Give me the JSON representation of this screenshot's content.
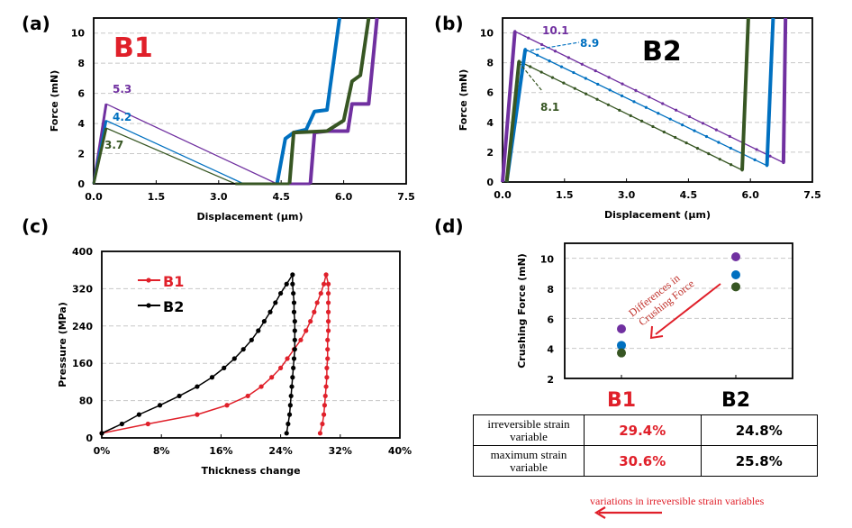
{
  "colors": {
    "purple": "#7030A0",
    "blue": "#0070C0",
    "green": "#375623",
    "red": "#E0202A",
    "black": "#000000"
  },
  "panels": {
    "a": "(a)",
    "b": "(b)",
    "c": "(c)",
    "d": "(d)"
  },
  "chart_data": [
    {
      "id": "a",
      "type": "line",
      "title": "B1",
      "xlabel": "Displacement (μm)",
      "ylabel": "Force (mN)",
      "xlim": [
        0,
        7.5
      ],
      "ylim": [
        0,
        11
      ],
      "xticks": [
        "0.0",
        "1.5",
        "3.0",
        "4.5",
        "6.0",
        "7.5"
      ],
      "yticks": [
        "0",
        "2",
        "4",
        "6",
        "8",
        "10"
      ],
      "grid": true,
      "annotations": [
        {
          "text": "5.3",
          "series": "purple"
        },
        {
          "text": "4.2",
          "series": "blue"
        },
        {
          "text": "3.7",
          "series": "green"
        }
      ],
      "series": [
        {
          "name": "purple",
          "color": "#7030A0",
          "points": [
            [
              0,
              0
            ],
            [
              0.3,
              5.3
            ],
            [
              4.4,
              0
            ],
            [
              5.2,
              0
            ],
            [
              5.3,
              3.4
            ],
            [
              5.6,
              3.5
            ],
            [
              6.1,
              3.5
            ],
            [
              6.2,
              5.3
            ],
            [
              6.6,
              5.3
            ],
            [
              6.8,
              11
            ]
          ]
        },
        {
          "name": "blue",
          "color": "#0070C0",
          "points": [
            [
              0,
              0
            ],
            [
              0.3,
              4.2
            ],
            [
              3.6,
              0
            ],
            [
              4.4,
              0
            ],
            [
              4.6,
              3
            ],
            [
              4.8,
              3.4
            ],
            [
              5.1,
              3.6
            ],
            [
              5.3,
              4.8
            ],
            [
              5.6,
              4.9
            ],
            [
              5.9,
              11
            ]
          ]
        },
        {
          "name": "green",
          "color": "#375623",
          "points": [
            [
              0,
              0
            ],
            [
              0.3,
              3.7
            ],
            [
              3.4,
              0
            ],
            [
              4.7,
              0
            ],
            [
              4.8,
              3.4
            ],
            [
              5.6,
              3.5
            ],
            [
              6.0,
              4.2
            ],
            [
              6.2,
              6.8
            ],
            [
              6.4,
              7.2
            ],
            [
              6.6,
              11
            ]
          ]
        }
      ]
    },
    {
      "id": "b",
      "type": "line",
      "title": "B2",
      "xlabel": "Displacement (μm)",
      "ylabel": "Force (mN)",
      "xlim": [
        0,
        7.5
      ],
      "ylim": [
        0,
        11
      ],
      "xticks": [
        "0.0",
        "1.5",
        "3.0",
        "4.5",
        "6.0",
        "7.5"
      ],
      "yticks": [
        "0",
        "2",
        "4",
        "6",
        "8",
        "10"
      ],
      "grid": true,
      "annotations": [
        {
          "text": "10.1",
          "series": "purple"
        },
        {
          "text": "8.9",
          "series": "blue"
        },
        {
          "text": "8.1",
          "series": "green"
        }
      ],
      "series": [
        {
          "name": "purple",
          "color": "#7030A0",
          "points": [
            [
              0,
              0
            ],
            [
              0.3,
              10.1
            ],
            [
              6.8,
              1.3
            ],
            [
              6.85,
              11
            ]
          ]
        },
        {
          "name": "blue",
          "color": "#0070C0",
          "points": [
            [
              0.1,
              0
            ],
            [
              0.55,
              8.9
            ],
            [
              6.4,
              1.1
            ],
            [
              6.55,
              11
            ]
          ]
        },
        {
          "name": "green",
          "color": "#375623",
          "points": [
            [
              0.1,
              0
            ],
            [
              0.4,
              8.1
            ],
            [
              5.8,
              0.8
            ],
            [
              5.95,
              11
            ]
          ]
        }
      ]
    },
    {
      "id": "c",
      "type": "line",
      "title": "",
      "xlabel": "Thickness change",
      "ylabel": "Pressure  (MPa)",
      "xlim": [
        0,
        40
      ],
      "ylim": [
        0,
        400
      ],
      "xticks": [
        "0%",
        "8%",
        "16%",
        "24%",
        "32%",
        "40%"
      ],
      "yticks": [
        "0",
        "80",
        "160",
        "240",
        "320",
        "400"
      ],
      "grid": true,
      "legend": {
        "position": "top-left",
        "entries": [
          "B1",
          "B2"
        ]
      },
      "series": [
        {
          "name": "B1",
          "color": "#E0202A",
          "points": [
            [
              0,
              10
            ],
            [
              6.2,
              30
            ],
            [
              12.8,
              50
            ],
            [
              16.8,
              70
            ],
            [
              19.6,
              90
            ],
            [
              21.4,
              110
            ],
            [
              22.8,
              130
            ],
            [
              24.0,
              150
            ],
            [
              24.9,
              170
            ],
            [
              25.8,
              190
            ],
            [
              26.7,
              210
            ],
            [
              27.4,
              230
            ],
            [
              28.0,
              250
            ],
            [
              28.5,
              270
            ],
            [
              28.9,
              290
            ],
            [
              29.4,
              310
            ],
            [
              29.8,
              330
            ],
            [
              30.1,
              350
            ],
            [
              30.4,
              330
            ],
            [
              30.4,
              310
            ],
            [
              30.4,
              290
            ],
            [
              30.4,
              270
            ],
            [
              30.4,
              250
            ],
            [
              30.4,
              230
            ],
            [
              30.3,
              210
            ],
            [
              30.3,
              190
            ],
            [
              30.3,
              170
            ],
            [
              30.2,
              150
            ],
            [
              30.2,
              130
            ],
            [
              30.1,
              110
            ],
            [
              30.0,
              90
            ],
            [
              29.9,
              70
            ],
            [
              29.8,
              50
            ],
            [
              29.6,
              30
            ],
            [
              29.3,
              10
            ]
          ]
        },
        {
          "name": "B2",
          "color": "#000000",
          "points": [
            [
              0,
              10
            ],
            [
              2.7,
              30
            ],
            [
              5.0,
              50
            ],
            [
              7.8,
              70
            ],
            [
              10.4,
              90
            ],
            [
              12.8,
              110
            ],
            [
              14.8,
              130
            ],
            [
              16.4,
              150
            ],
            [
              17.8,
              170
            ],
            [
              19.0,
              190
            ],
            [
              20.1,
              210
            ],
            [
              21.0,
              230
            ],
            [
              21.8,
              250
            ],
            [
              22.6,
              270
            ],
            [
              23.3,
              290
            ],
            [
              24.0,
              310
            ],
            [
              24.8,
              330
            ],
            [
              25.6,
              350
            ],
            [
              25.6,
              330
            ],
            [
              25.7,
              310
            ],
            [
              25.8,
              290
            ],
            [
              25.8,
              270
            ],
            [
              25.9,
              250
            ],
            [
              25.9,
              230
            ],
            [
              25.9,
              210
            ],
            [
              25.9,
              190
            ],
            [
              25.8,
              170
            ],
            [
              25.7,
              150
            ],
            [
              25.6,
              130
            ],
            [
              25.5,
              110
            ],
            [
              25.4,
              90
            ],
            [
              25.3,
              70
            ],
            [
              25.2,
              50
            ],
            [
              25.0,
              30
            ],
            [
              24.8,
              10
            ]
          ]
        }
      ]
    },
    {
      "id": "d",
      "type": "scatter",
      "title": "",
      "xlabel": "",
      "ylabel": "Crushing Force (mN)",
      "categories": [
        "B1",
        "B2"
      ],
      "ylim": [
        2,
        11
      ],
      "yticks": [
        "2",
        "4",
        "6",
        "8",
        "10"
      ],
      "grid": true,
      "annotation": {
        "line1": "Differences in",
        "line2": "Crushing Force"
      },
      "series": [
        {
          "name": "purple",
          "color": "#7030A0",
          "values": [
            5.3,
            10.1
          ]
        },
        {
          "name": "blue",
          "color": "#0070C0",
          "values": [
            4.2,
            8.9
          ]
        },
        {
          "name": "green",
          "color": "#375623",
          "values": [
            3.7,
            8.1
          ]
        }
      ]
    }
  ],
  "table": {
    "rows": [
      {
        "label": "irreversible strain variable",
        "b1": "29.4%",
        "b2": "24.8%"
      },
      {
        "label": "maximum strain variable",
        "b1": "30.6%",
        "b2": "25.8%"
      }
    ]
  },
  "footnote": "variations in irreversible strain variables"
}
